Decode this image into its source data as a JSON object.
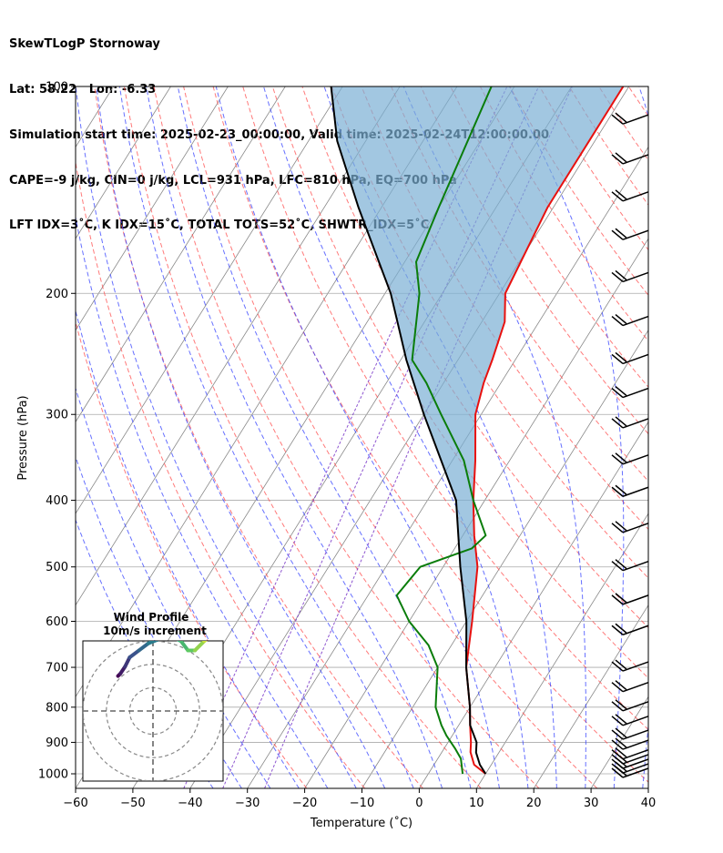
{
  "header": {
    "lines": [
      "SkewTLogP Stornoway",
      "Lat: 58.22   Lon: -6.33",
      "Simulation start time: 2025-02-23_00:00:00, Valid time: 2025-02-24T12:00:00.00",
      "CAPE=-9 j/kg, CIN=0 j/kg, LCL=931 hPa, LFC=810 hPa, EQ=700 hPa",
      "LFT IDX=3˚C, K IDX=15˚C, TOTAL TOTS=52˚C, SHWTR_IDX=5˚C"
    ]
  },
  "chart_data": [
    {
      "type": "line",
      "subtype": "skew-T log-P",
      "xlabel": "Temperature (˚C)",
      "ylabel": "Pressure (hPa)",
      "xlim": [
        -60,
        40
      ],
      "ylim_pressure_hPa": [
        1050,
        100
      ],
      "x_ticks": [
        "−60",
        "−50",
        "−40",
        "−30",
        "−20",
        "−10",
        "0",
        "10",
        "20",
        "30",
        "40"
      ],
      "x_tick_values": [
        -60,
        -50,
        -40,
        -30,
        -20,
        -10,
        0,
        10,
        20,
        30,
        40
      ],
      "y_ticks": [
        "1000",
        "900",
        "800",
        "700",
        "600",
        "500",
        "400",
        "300",
        "200",
        "100"
      ],
      "y_tick_values": [
        1000,
        900,
        800,
        700,
        600,
        500,
        400,
        300,
        200,
        100
      ],
      "grid": true,
      "colors": {
        "temperature": "#e8110f",
        "dewpoint": "#0a7d0a",
        "parcel": "#000000",
        "cape_fill": "#7bafd4",
        "dry_adiabats": "#ff4d4d",
        "moist_adiabats": "#3340ff",
        "mixing_ratio": "#7a38c8",
        "isotherms": "#888888",
        "isobars": "#aaaaaa"
      },
      "series": [
        {
          "name": "",
          "role": "temperature",
          "points": [
            [
              1000,
              10
            ],
            [
              970,
              7
            ],
            [
              930,
              5
            ],
            [
              900,
              4
            ],
            [
              850,
              2
            ],
            [
              800,
              0
            ],
            [
              700,
              -5
            ],
            [
              600,
              -9
            ],
            [
              500,
              -14
            ],
            [
              450,
              -18
            ],
            [
              400,
              -22
            ],
            [
              350,
              -26
            ],
            [
              300,
              -31
            ],
            [
              270,
              -33
            ],
            [
              250,
              -34
            ],
            [
              220,
              -36
            ],
            [
              200,
              -39
            ],
            [
              150,
              -41
            ],
            [
              120,
              -41
            ],
            [
              100,
              -41
            ]
          ]
        },
        {
          "name": "",
          "role": "dewpoint",
          "points": [
            [
              1000,
              6
            ],
            [
              950,
              4
            ],
            [
              920,
              2
            ],
            [
              880,
              -1
            ],
            [
              850,
              -3
            ],
            [
              800,
              -6
            ],
            [
              700,
              -10
            ],
            [
              650,
              -14
            ],
            [
              600,
              -20
            ],
            [
              550,
              -25
            ],
            [
              500,
              -24
            ],
            [
              470,
              -17
            ],
            [
              450,
              -16
            ],
            [
              400,
              -22
            ],
            [
              350,
              -28
            ],
            [
              300,
              -37
            ],
            [
              270,
              -43
            ],
            [
              250,
              -48
            ],
            [
              200,
              -54
            ],
            [
              180,
              -58
            ],
            [
              150,
              -60
            ],
            [
              100,
              -64
            ]
          ]
        },
        {
          "name": "",
          "role": "parcel",
          "points": [
            [
              1000,
              10
            ],
            [
              970,
              8
            ],
            [
              931,
              6
            ],
            [
              900,
              5
            ],
            [
              850,
              2
            ],
            [
              800,
              0
            ],
            [
              700,
              -5
            ],
            [
              600,
              -10
            ],
            [
              500,
              -17
            ],
            [
              400,
              -25
            ],
            [
              300,
              -40
            ],
            [
              250,
              -49
            ],
            [
              200,
              -59
            ],
            [
              150,
              -74
            ],
            [
              120,
              -85
            ],
            [
              100,
              -92
            ]
          ]
        }
      ],
      "barbs_pressure_hPa": [
        1000,
        985,
        970,
        955,
        940,
        910,
        880,
        840,
        800,
        750,
        700,
        620,
        560,
        500,
        440,
        390,
        350,
        310,
        280,
        250,
        220,
        190,
        165,
        145,
        128,
        112
      ]
    },
    {
      "type": "scatter",
      "subtype": "hodograph",
      "title": "Wind Profile",
      "subtitle": "10m/s increment",
      "grid": true,
      "rings": 3,
      "series": [
        {
          "name": "",
          "u": [
            -1.5,
            -1.4,
            -1.2,
            -1.0,
            -0.6,
            -0.2,
            0.3,
            0.8,
            1.2,
            1.5,
            1.8,
            2.2,
            2.6,
            3.0
          ],
          "v": [
            1.5,
            1.6,
            1.9,
            2.3,
            2.6,
            2.9,
            3.1,
            3.2,
            3.0,
            2.6,
            2.6,
            3.0,
            3.3,
            3.6
          ]
        }
      ]
    }
  ]
}
